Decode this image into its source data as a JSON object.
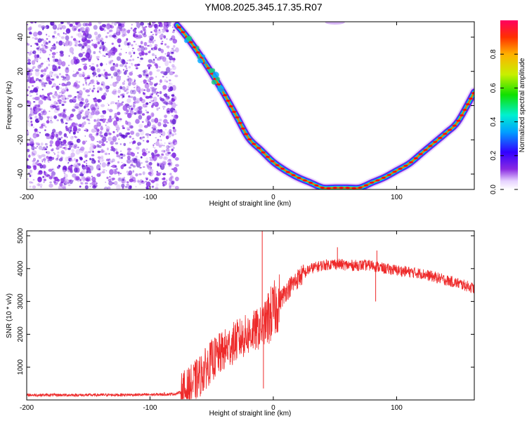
{
  "title": "YM08.2025.345.17.35.R07",
  "chart_data": [
    {
      "type": "heatmap",
      "name": "spectrogram",
      "xlabel": "Height of straight line (km)",
      "ylabel": "Frequency (Hz)",
      "xlim": [
        -200,
        163
      ],
      "ylim": [
        -49,
        49
      ],
      "xticks": [
        -200,
        -100,
        0,
        100
      ],
      "yticks": [
        -40,
        -20,
        0,
        20,
        40
      ],
      "noise_region_x": [
        -200,
        -78
      ],
      "colorbar": {
        "label": "Normalized spectral amplitude",
        "range": [
          0.0,
          1.0
        ],
        "ticks": [
          0.0,
          0.2,
          0.4,
          0.6,
          0.8
        ]
      },
      "ridge": {
        "x": [
          -78,
          -70,
          -60,
          -50,
          -40,
          -30,
          -20,
          -10,
          0,
          10,
          20,
          30,
          40,
          50,
          60,
          70,
          80,
          90,
          100,
          110,
          120,
          130,
          140,
          150,
          163
        ],
        "freq": [
          47,
          40,
          30,
          19,
          7,
          -6,
          -19,
          -26,
          -33,
          -38,
          -42,
          -45,
          -48,
          -48,
          -48,
          -48,
          -45,
          -42,
          -38,
          -34,
          -28,
          -22,
          -16,
          -9,
          8
        ]
      }
    },
    {
      "type": "line",
      "name": "snr",
      "xlabel": "Height of straight line (km)",
      "ylabel": "SNR (10 * v/v)",
      "xlim": [
        -200,
        163
      ],
      "ylim": [
        0,
        5150
      ],
      "xticks": [
        -200,
        -100,
        0,
        100
      ],
      "yticks": [
        1000,
        2000,
        3000,
        4000,
        5000
      ],
      "color": "#ee2a2a",
      "series": [
        {
          "name": "SNR",
          "x": [
            -200,
            -150,
            -100,
            -80,
            -70,
            -60,
            -50,
            -40,
            -30,
            -20,
            -10,
            0,
            10,
            20,
            30,
            40,
            50,
            60,
            70,
            80,
            90,
            100,
            110,
            120,
            130,
            140,
            150,
            163
          ],
          "y": [
            150,
            150,
            160,
            180,
            300,
            700,
            1200,
            1500,
            1800,
            2000,
            2200,
            2700,
            3300,
            3700,
            4000,
            4100,
            4150,
            4100,
            4100,
            4100,
            4000,
            3950,
            3900,
            3850,
            3750,
            3650,
            3550,
            3400
          ]
        }
      ],
      "spikes": [
        {
          "x": -9,
          "y": 5150
        },
        {
          "x": 52,
          "y": 4650
        },
        {
          "x": 84,
          "y": 4550
        },
        {
          "x": 83,
          "y": 3000
        },
        {
          "x": -8,
          "y": 350
        }
      ]
    }
  ]
}
